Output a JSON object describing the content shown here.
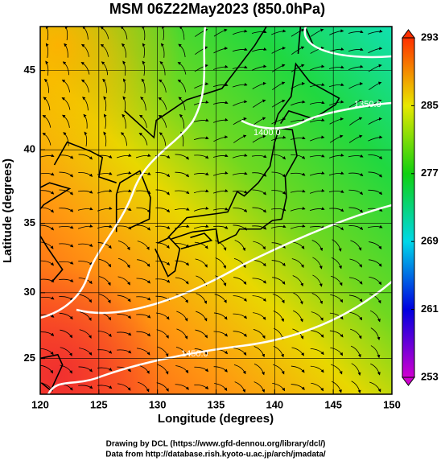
{
  "chart_data": {
    "type": "map",
    "title": "MSM 06Z22May2023 (850.0hPa)",
    "xlabel": "Longitude (degrees)",
    "ylabel": "Latitude  (degrees)",
    "projection": "mercator",
    "xlim": [
      120,
      150
    ],
    "xticks": [
      120,
      125,
      130,
      135,
      140,
      145,
      150
    ],
    "ylim": [
      22.2,
      47.6
    ],
    "yticks": [
      25,
      30,
      35,
      40,
      45
    ],
    "grid": true,
    "colorbar": {
      "lim": [
        253,
        293
      ],
      "ticks": [
        253,
        261,
        269,
        277,
        285,
        293
      ],
      "colors": [
        "#d000d0",
        "#0000e0",
        "#00d8e8",
        "#10d010",
        "#e8e800",
        "#ff3000"
      ]
    },
    "contour_labels": [
      "1350.0",
      "1400.0",
      "1450.0"
    ]
  },
  "footer": [
    "Drawing by DCL (https://www.gfd-dennou.org/library/dcl/)",
    "Data from http://database.rish.kyoto-u.ac.jp/arch/jmadata/"
  ]
}
